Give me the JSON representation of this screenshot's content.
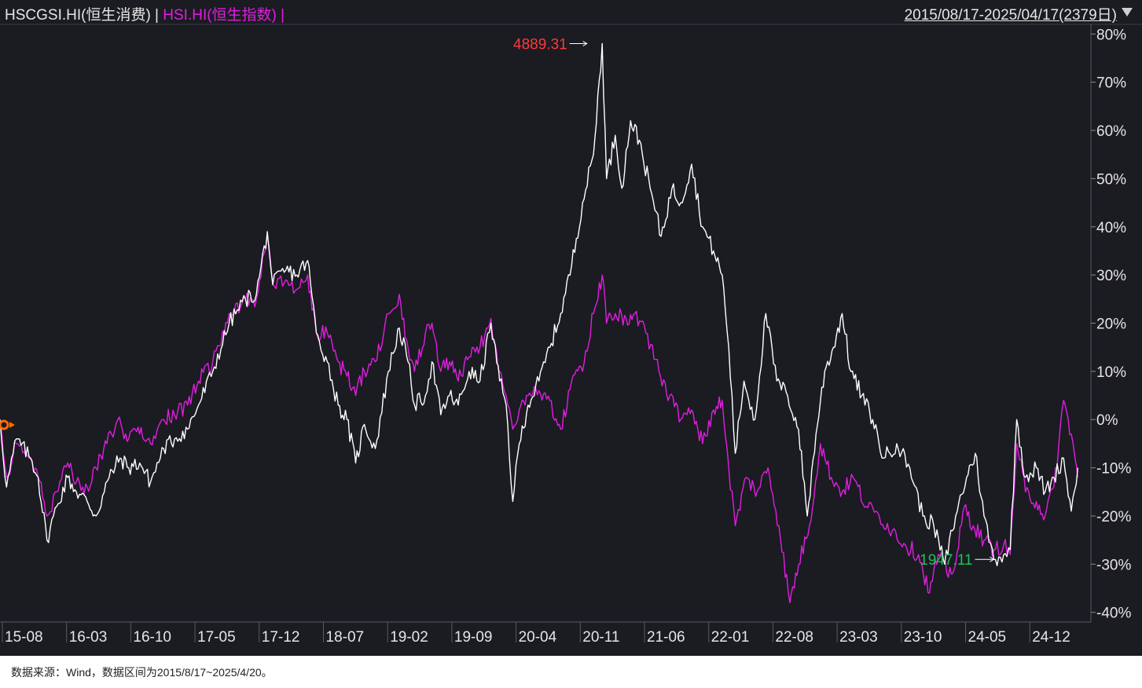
{
  "header": {
    "series1_label": "HSCGSI.HI(恒生消费)",
    "separator": " | ",
    "series2_label": "HSI.HI(恒生指数)",
    "series2_suffix": " |",
    "date_range": "2015/08/17-2025/04/17(2379日)"
  },
  "footer": {
    "source": "数据来源：Wind，数据区间为2015/8/17~2025/4/20。"
  },
  "colors": {
    "background": "#1b1b22",
    "series1": "#ffffff",
    "series2": "#e01ee0",
    "max_label": "#ff3a3a",
    "min_label": "#1fc05a",
    "start_marker": "#ff6a00"
  },
  "chart_data": {
    "type": "line",
    "ylim": [
      -0.42,
      0.82
    ],
    "y_ticks": [
      "80%",
      "70%",
      "60%",
      "50%",
      "40%",
      "30%",
      "20%",
      "10%",
      "0%",
      "-10%",
      "-20%",
      "-30%",
      "-40%"
    ],
    "y_tick_values": [
      0.8,
      0.7,
      0.6,
      0.5,
      0.4,
      0.3,
      0.2,
      0.1,
      0.0,
      -0.1,
      -0.2,
      -0.3,
      -0.4
    ],
    "x_ticks": [
      "15-08",
      "16-03",
      "16-10",
      "17-05",
      "17-12",
      "18-07",
      "19-02",
      "19-09",
      "20-04",
      "20-11",
      "21-06",
      "22-01",
      "22-08",
      "23-03",
      "23-10",
      "24-05",
      "24-12"
    ],
    "grid": false,
    "legend": "top-left",
    "annotations": [
      {
        "text": "4889.31",
        "kind": "max",
        "series": "HSCGSI.HI(恒生消费)",
        "x": 0.538,
        "y": 0.78
      },
      {
        "text": "1947.11",
        "kind": "min",
        "series": "HSCGSI.HI(恒生消费)",
        "x": 0.911,
        "y": -0.29
      }
    ],
    "series": [
      {
        "name": "HSCGSI.HI(恒生消费)",
        "anchors": [
          [
            0.0,
            0.0
          ],
          [
            0.006,
            -0.14
          ],
          [
            0.015,
            -0.04
          ],
          [
            0.028,
            -0.08
          ],
          [
            0.035,
            -0.12
          ],
          [
            0.043,
            -0.25
          ],
          [
            0.052,
            -0.18
          ],
          [
            0.062,
            -0.12
          ],
          [
            0.07,
            -0.15
          ],
          [
            0.08,
            -0.17
          ],
          [
            0.088,
            -0.2
          ],
          [
            0.1,
            -0.12
          ],
          [
            0.11,
            -0.08
          ],
          [
            0.118,
            -0.1
          ],
          [
            0.128,
            -0.09
          ],
          [
            0.138,
            -0.13
          ],
          [
            0.15,
            -0.06
          ],
          [
            0.16,
            -0.04
          ],
          [
            0.172,
            -0.02
          ],
          [
            0.182,
            0.03
          ],
          [
            0.195,
            0.1
          ],
          [
            0.21,
            0.2
          ],
          [
            0.225,
            0.25
          ],
          [
            0.235,
            0.26
          ],
          [
            0.245,
            0.39
          ],
          [
            0.25,
            0.28
          ],
          [
            0.262,
            0.31
          ],
          [
            0.272,
            0.3
          ],
          [
            0.282,
            0.33
          ],
          [
            0.29,
            0.18
          ],
          [
            0.3,
            0.12
          ],
          [
            0.31,
            0.03
          ],
          [
            0.318,
            0.0
          ],
          [
            0.326,
            -0.09
          ],
          [
            0.334,
            -0.01
          ],
          [
            0.344,
            -0.06
          ],
          [
            0.356,
            0.1
          ],
          [
            0.366,
            0.19
          ],
          [
            0.374,
            0.12
          ],
          [
            0.38,
            0.03
          ],
          [
            0.39,
            0.05
          ],
          [
            0.396,
            0.12
          ],
          [
            0.404,
            0.01
          ],
          [
            0.412,
            0.05
          ],
          [
            0.42,
            0.03
          ],
          [
            0.43,
            0.1
          ],
          [
            0.44,
            0.08
          ],
          [
            0.45,
            0.2
          ],
          [
            0.458,
            0.08
          ],
          [
            0.464,
            0.03
          ],
          [
            0.47,
            -0.17
          ],
          [
            0.476,
            -0.05
          ],
          [
            0.484,
            0.03
          ],
          [
            0.494,
            0.08
          ],
          [
            0.504,
            0.15
          ],
          [
            0.514,
            0.22
          ],
          [
            0.524,
            0.32
          ],
          [
            0.534,
            0.45
          ],
          [
            0.544,
            0.55
          ],
          [
            0.552,
            0.78
          ],
          [
            0.556,
            0.5
          ],
          [
            0.564,
            0.59
          ],
          [
            0.57,
            0.48
          ],
          [
            0.578,
            0.62
          ],
          [
            0.586,
            0.58
          ],
          [
            0.596,
            0.48
          ],
          [
            0.606,
            0.38
          ],
          [
            0.616,
            0.48
          ],
          [
            0.624,
            0.45
          ],
          [
            0.634,
            0.53
          ],
          [
            0.644,
            0.4
          ],
          [
            0.654,
            0.35
          ],
          [
            0.662,
            0.3
          ],
          [
            0.668,
            0.15
          ],
          [
            0.674,
            -0.07
          ],
          [
            0.682,
            0.08
          ],
          [
            0.692,
            0.0
          ],
          [
            0.702,
            0.22
          ],
          [
            0.712,
            0.08
          ],
          [
            0.722,
            0.05
          ],
          [
            0.732,
            -0.02
          ],
          [
            0.74,
            -0.2
          ],
          [
            0.748,
            -0.03
          ],
          [
            0.756,
            0.1
          ],
          [
            0.764,
            0.15
          ],
          [
            0.772,
            0.22
          ],
          [
            0.78,
            0.1
          ],
          [
            0.79,
            0.05
          ],
          [
            0.8,
            0.0
          ],
          [
            0.81,
            -0.08
          ],
          [
            0.822,
            -0.05
          ],
          [
            0.834,
            -0.1
          ],
          [
            0.846,
            -0.2
          ],
          [
            0.856,
            -0.22
          ],
          [
            0.866,
            -0.3
          ],
          [
            0.876,
            -0.2
          ],
          [
            0.886,
            -0.12
          ],
          [
            0.894,
            -0.07
          ],
          [
            0.902,
            -0.2
          ],
          [
            0.911,
            -0.29
          ],
          [
            0.92,
            -0.28
          ],
          [
            0.926,
            -0.27
          ],
          [
            0.932,
            0.0
          ],
          [
            0.94,
            -0.12
          ],
          [
            0.95,
            -0.1
          ],
          [
            0.958,
            -0.15
          ],
          [
            0.966,
            -0.12
          ],
          [
            0.975,
            -0.08
          ],
          [
            0.982,
            -0.19
          ],
          [
            0.988,
            -0.1
          ]
        ]
      },
      {
        "name": "HSI.HI(恒生指数)",
        "anchors": [
          [
            0.0,
            0.0
          ],
          [
            0.006,
            -0.12
          ],
          [
            0.015,
            -0.05
          ],
          [
            0.028,
            -0.08
          ],
          [
            0.035,
            -0.12
          ],
          [
            0.043,
            -0.2
          ],
          [
            0.052,
            -0.15
          ],
          [
            0.062,
            -0.09
          ],
          [
            0.07,
            -0.13
          ],
          [
            0.08,
            -0.14
          ],
          [
            0.088,
            -0.1
          ],
          [
            0.098,
            -0.05
          ],
          [
            0.108,
            0.0
          ],
          [
            0.118,
            -0.04
          ],
          [
            0.128,
            -0.03
          ],
          [
            0.138,
            -0.05
          ],
          [
            0.15,
            0.0
          ],
          [
            0.16,
            0.01
          ],
          [
            0.172,
            0.03
          ],
          [
            0.182,
            0.08
          ],
          [
            0.195,
            0.12
          ],
          [
            0.21,
            0.22
          ],
          [
            0.225,
            0.25
          ],
          [
            0.235,
            0.25
          ],
          [
            0.245,
            0.38
          ],
          [
            0.25,
            0.28
          ],
          [
            0.262,
            0.29
          ],
          [
            0.272,
            0.27
          ],
          [
            0.282,
            0.3
          ],
          [
            0.29,
            0.18
          ],
          [
            0.3,
            0.18
          ],
          [
            0.31,
            0.12
          ],
          [
            0.318,
            0.09
          ],
          [
            0.326,
            0.05
          ],
          [
            0.334,
            0.1
          ],
          [
            0.344,
            0.12
          ],
          [
            0.356,
            0.22
          ],
          [
            0.366,
            0.26
          ],
          [
            0.374,
            0.15
          ],
          [
            0.38,
            0.1
          ],
          [
            0.39,
            0.18
          ],
          [
            0.396,
            0.2
          ],
          [
            0.404,
            0.1
          ],
          [
            0.412,
            0.12
          ],
          [
            0.42,
            0.08
          ],
          [
            0.43,
            0.13
          ],
          [
            0.44,
            0.15
          ],
          [
            0.45,
            0.21
          ],
          [
            0.458,
            0.1
          ],
          [
            0.464,
            0.05
          ],
          [
            0.47,
            -0.02
          ],
          [
            0.476,
            0.02
          ],
          [
            0.484,
            0.05
          ],
          [
            0.494,
            0.06
          ],
          [
            0.504,
            0.04
          ],
          [
            0.514,
            -0.02
          ],
          [
            0.524,
            0.08
          ],
          [
            0.534,
            0.1
          ],
          [
            0.544,
            0.22
          ],
          [
            0.552,
            0.3
          ],
          [
            0.556,
            0.2
          ],
          [
            0.564,
            0.22
          ],
          [
            0.574,
            0.21
          ],
          [
            0.582,
            0.22
          ],
          [
            0.592,
            0.18
          ],
          [
            0.604,
            0.1
          ],
          [
            0.614,
            0.05
          ],
          [
            0.624,
            0.0
          ],
          [
            0.634,
            0.02
          ],
          [
            0.644,
            -0.05
          ],
          [
            0.654,
            0.02
          ],
          [
            0.662,
            0.04
          ],
          [
            0.668,
            -0.1
          ],
          [
            0.674,
            -0.22
          ],
          [
            0.684,
            -0.12
          ],
          [
            0.694,
            -0.15
          ],
          [
            0.704,
            -0.1
          ],
          [
            0.714,
            -0.22
          ],
          [
            0.724,
            -0.38
          ],
          [
            0.732,
            -0.3
          ],
          [
            0.742,
            -0.22
          ],
          [
            0.752,
            -0.05
          ],
          [
            0.762,
            -0.12
          ],
          [
            0.772,
            -0.15
          ],
          [
            0.782,
            -0.12
          ],
          [
            0.794,
            -0.18
          ],
          [
            0.806,
            -0.2
          ],
          [
            0.818,
            -0.23
          ],
          [
            0.83,
            -0.26
          ],
          [
            0.842,
            -0.28
          ],
          [
            0.852,
            -0.36
          ],
          [
            0.86,
            -0.28
          ],
          [
            0.868,
            -0.32
          ],
          [
            0.876,
            -0.3
          ],
          [
            0.884,
            -0.18
          ],
          [
            0.892,
            -0.22
          ],
          [
            0.902,
            -0.25
          ],
          [
            0.911,
            -0.27
          ],
          [
            0.92,
            -0.26
          ],
          [
            0.926,
            -0.28
          ],
          [
            0.932,
            -0.05
          ],
          [
            0.94,
            -0.15
          ],
          [
            0.95,
            -0.17
          ],
          [
            0.958,
            -0.2
          ],
          [
            0.966,
            -0.14
          ],
          [
            0.975,
            0.04
          ],
          [
            0.982,
            -0.03
          ],
          [
            0.988,
            -0.12
          ]
        ]
      }
    ]
  }
}
